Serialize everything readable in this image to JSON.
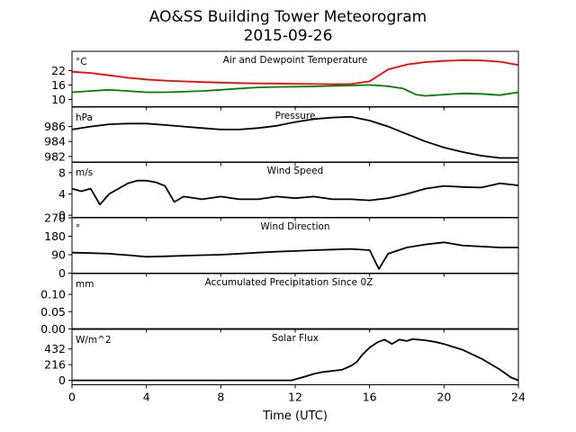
{
  "figure": {
    "title_line1": "AO&SS Building Tower Meteorogram",
    "title_line2": "2015-09-26",
    "xlabel": "Time (UTC)"
  },
  "chart_data": [
    {
      "id": "temp",
      "type": "line",
      "title": "Air and Dewpoint Temperature",
      "unit": "°C",
      "yticks": [
        10,
        16,
        22
      ],
      "ylim": [
        7,
        30
      ],
      "xlim": [
        0,
        24
      ],
      "xticks": [
        0,
        4,
        8,
        12,
        16,
        20,
        24
      ],
      "grid": false,
      "series": [
        {
          "color": "#ff0000",
          "x": [
            0,
            1,
            2,
            3,
            4,
            5,
            6,
            7,
            8,
            9,
            10,
            11,
            12,
            13,
            14,
            15,
            16,
            17,
            18,
            19,
            20,
            21,
            22,
            23,
            24
          ],
          "y": [
            21.5,
            21,
            20,
            19,
            18.3,
            17.8,
            17.5,
            17.2,
            17,
            16.8,
            16.7,
            16.6,
            16.5,
            16.4,
            16.3,
            16.4,
            17.5,
            22.5,
            24.5,
            25.5,
            26,
            26.3,
            26.2,
            25.7,
            24.3
          ]
        },
        {
          "color": "#008000",
          "x": [
            0,
            1,
            2,
            3,
            4,
            5,
            6,
            7,
            8,
            9,
            10,
            11,
            12,
            13,
            14,
            15,
            16,
            17,
            17.8,
            18.5,
            19,
            20,
            21,
            22,
            23,
            24
          ],
          "y": [
            13,
            13.5,
            14,
            13.5,
            13,
            13,
            13.2,
            13.5,
            14,
            14.5,
            15,
            15.2,
            15.3,
            15.4,
            15.6,
            15.8,
            16,
            15.5,
            14.5,
            12,
            11.5,
            12,
            12.5,
            12.3,
            11.8,
            13
          ]
        }
      ]
    },
    {
      "id": "pres",
      "type": "line",
      "title": "Pressure",
      "unit": "hPa",
      "yticks": [
        982,
        984,
        986
      ],
      "ylim": [
        981.2,
        988.6
      ],
      "xlim": [
        0,
        24
      ],
      "grid": false,
      "series": [
        {
          "color": "#000000",
          "x": [
            0,
            1,
            2,
            3,
            4,
            5,
            6,
            7,
            8,
            9,
            10,
            11,
            12,
            13,
            14,
            15,
            16,
            17,
            18,
            19,
            20,
            21,
            22,
            23,
            24
          ],
          "y": [
            985.6,
            986,
            986.3,
            986.4,
            986.4,
            986.2,
            986,
            985.8,
            985.6,
            985.6,
            985.8,
            986.1,
            986.6,
            987,
            987.2,
            987.3,
            986.8,
            986,
            985,
            984,
            983.2,
            982.6,
            982.1,
            981.8,
            981.8
          ]
        }
      ]
    },
    {
      "id": "wspd",
      "type": "line",
      "title": "Wind Speed",
      "unit": "m/s",
      "yticks": [
        0,
        4,
        8
      ],
      "ylim": [
        -0.4,
        10
      ],
      "xlim": [
        0,
        24
      ],
      "grid": false,
      "series": [
        {
          "color": "#000000",
          "x": [
            0,
            0.5,
            1,
            1.5,
            2,
            2.5,
            3,
            3.5,
            4,
            4.5,
            5,
            5.5,
            6,
            7,
            8,
            9,
            10,
            11,
            12,
            13,
            14,
            15,
            16,
            17,
            18,
            19,
            20,
            21,
            22,
            23,
            24
          ],
          "y": [
            5,
            4.5,
            5,
            2,
            4,
            5,
            6,
            6.5,
            6.5,
            6.2,
            5.5,
            2.5,
            3.5,
            3,
            3.5,
            3,
            3,
            3.5,
            3.2,
            3.5,
            3,
            3,
            2.8,
            3.2,
            4,
            5,
            5.5,
            5.3,
            5.2,
            6,
            5.6
          ]
        }
      ]
    },
    {
      "id": "wdir",
      "type": "line",
      "title": "Wind Direction",
      "unit": "°",
      "yticks": [
        0,
        90,
        180,
        270
      ],
      "ylim": [
        0,
        270
      ],
      "xlim": [
        0,
        24
      ],
      "grid": false,
      "series": [
        {
          "color": "#000000",
          "x": [
            0,
            1,
            2,
            3,
            4,
            5,
            6,
            7,
            8,
            9,
            10,
            11,
            12,
            13,
            14,
            15,
            16,
            16.5,
            17,
            18,
            19,
            20,
            21,
            22,
            23,
            24
          ],
          "y": [
            100,
            98,
            95,
            88,
            80,
            82,
            85,
            88,
            90,
            95,
            100,
            105,
            108,
            112,
            115,
            118,
            112,
            20,
            95,
            125,
            140,
            150,
            135,
            130,
            125,
            125
          ]
        }
      ]
    },
    {
      "id": "prec",
      "type": "line",
      "title": "Accumulated Precipitation Since 0Z",
      "unit": "mm",
      "yticks": [
        0.0,
        0.05,
        0.1
      ],
      "ytick_labels": [
        "0.00",
        "0.05",
        "0.10"
      ],
      "ylim": [
        0,
        0.16
      ],
      "xlim": [
        0,
        24
      ],
      "grid": false,
      "series": [
        {
          "color": "#000000",
          "x": [
            0,
            24
          ],
          "y": [
            0,
            0
          ]
        }
      ]
    },
    {
      "id": "solar",
      "type": "line",
      "title": "Solar Flux",
      "unit": "W/m^2",
      "yticks": [
        0,
        216,
        432
      ],
      "ylim": [
        -60,
        700
      ],
      "xlim": [
        0,
        24
      ],
      "grid": false,
      "series": [
        {
          "color": "#000000",
          "x": [
            0,
            11.8,
            12.5,
            13,
            13.5,
            14,
            14.5,
            15,
            15.3,
            15.6,
            16,
            16.4,
            16.8,
            17.2,
            17.6,
            18,
            18.3,
            18.6,
            19,
            19.5,
            20,
            21,
            22,
            23,
            23.6,
            24
          ],
          "y": [
            0,
            0,
            50,
            90,
            115,
            130,
            145,
            200,
            250,
            350,
            450,
            520,
            560,
            500,
            560,
            540,
            565,
            560,
            550,
            530,
            500,
            420,
            300,
            150,
            40,
            0
          ]
        }
      ]
    }
  ]
}
